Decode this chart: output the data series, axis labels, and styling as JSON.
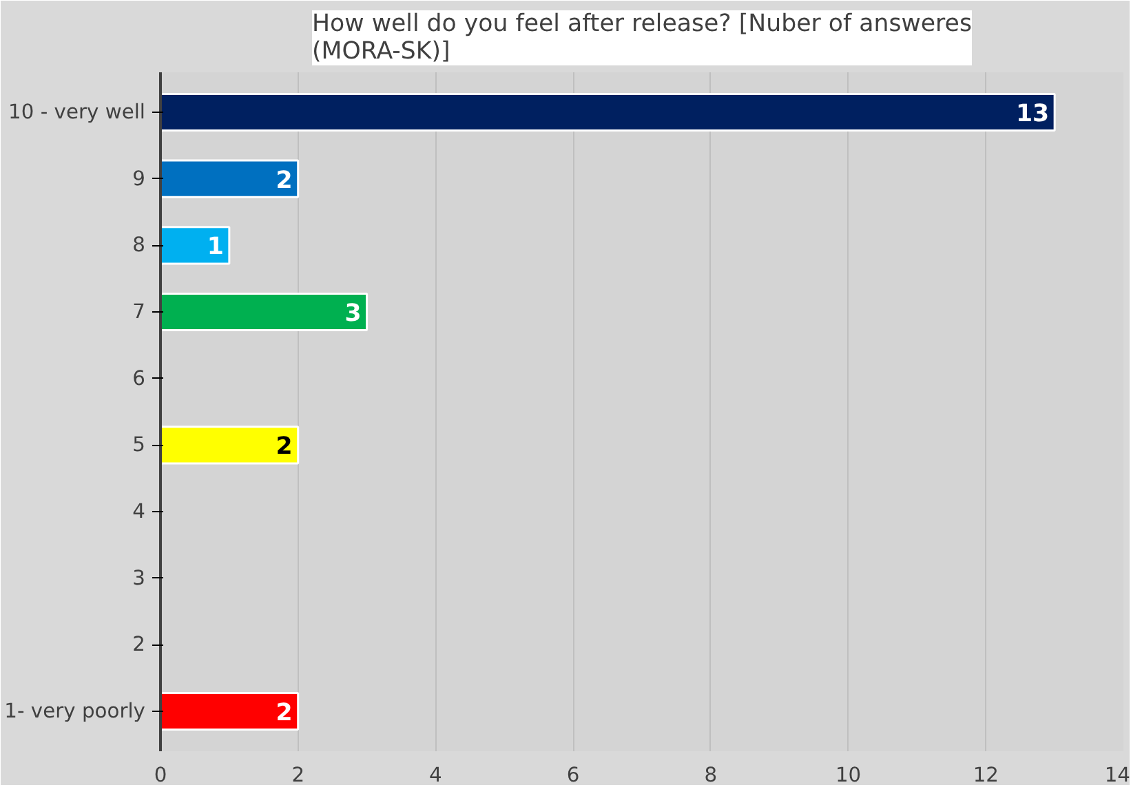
{
  "chart_data": {
    "type": "bar",
    "orientation": "horizontal",
    "title": "How well do you feel after release? [Nuber of answeres (MORA-SK)]",
    "categories": [
      "10 - very well",
      "9",
      "8",
      "7",
      "6",
      "5",
      "4",
      "3",
      "2",
      "1- very poorly"
    ],
    "values": [
      13,
      2,
      1,
      3,
      0,
      2,
      0,
      0,
      0,
      2
    ],
    "colors": [
      "#002060",
      "#0070c0",
      "#00b0f0",
      "#00b050",
      "#c8c8c8",
      "#ffff00",
      "#c8c8c8",
      "#c8c8c8",
      "#c8c8c8",
      "#ff0000"
    ],
    "value_labels": [
      "13",
      "2",
      "1",
      "3",
      null,
      "2",
      null,
      null,
      null,
      "2"
    ],
    "xlim": [
      0,
      14
    ],
    "xticks": [
      0,
      2,
      4,
      6,
      8,
      10,
      12,
      14
    ],
    "grid": "x"
  }
}
